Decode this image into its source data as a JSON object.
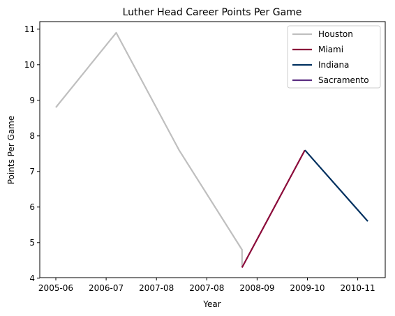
{
  "chart_data": {
    "type": "line",
    "title": "Luther Head Career Points Per Game",
    "xlabel": "Year",
    "ylabel": "Points Per Game",
    "x_ticks": [
      "2005-06",
      "2006-07",
      "2007-08",
      "2007-08",
      "2008-09",
      "2009-10",
      "2010-11"
    ],
    "ylim": [
      4,
      11.25
    ],
    "y_ticks": [
      4,
      5,
      6,
      7,
      8,
      9,
      10,
      11
    ],
    "grid": false,
    "legend_position": "top-right",
    "series": [
      {
        "name": "Houston",
        "color": "#bfbfbf",
        "points": [
          {
            "x": 0.0,
            "y": 8.8
          },
          {
            "x": 1.2,
            "y": 10.9
          },
          {
            "x": 2.45,
            "y": 7.6
          },
          {
            "x": 3.7,
            "y": 4.8
          },
          {
            "x": 3.7,
            "y": 4.3
          }
        ]
      },
      {
        "name": "Miami",
        "color": "#8b0a3a",
        "points": [
          {
            "x": 3.7,
            "y": 4.3
          },
          {
            "x": 4.95,
            "y": 7.6
          }
        ]
      },
      {
        "name": "Indiana",
        "color": "#00305f",
        "points": [
          {
            "x": 4.95,
            "y": 7.6
          },
          {
            "x": 6.2,
            "y": 5.6
          }
        ]
      },
      {
        "name": "Sacramento",
        "color": "#5a2d81",
        "points": []
      }
    ]
  }
}
